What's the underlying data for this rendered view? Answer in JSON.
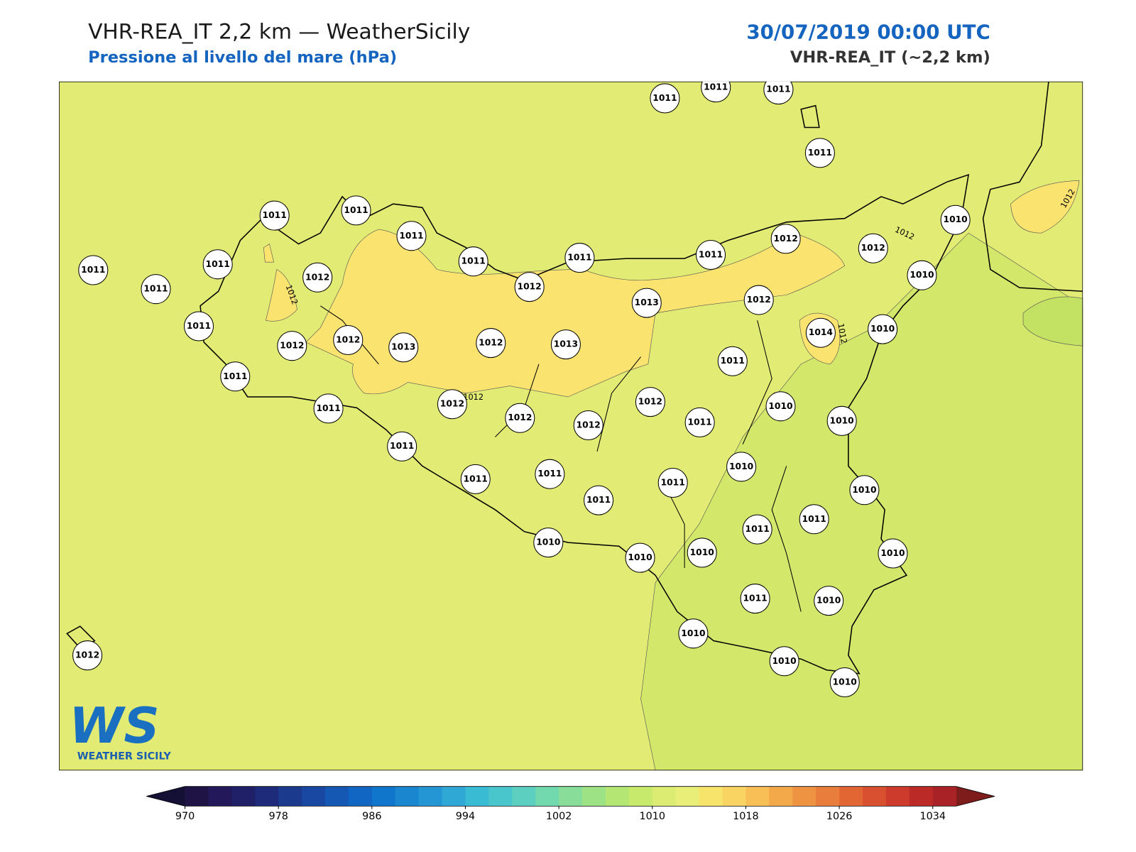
{
  "header": {
    "title": "VHR-REA_IT 2,2 km — WeatherSicily",
    "subtitle": "Pressione al livello del mare (hPa)",
    "date": "30/07/2019 00:00 UTC",
    "model": "VHR-REA_IT (~2,2 km)"
  },
  "stations": {
    "values": [
      1011,
      1011,
      1011,
      1011,
      1011,
      1011,
      1011,
      1011,
      1011,
      1011,
      1012,
      1012,
      1010,
      1010,
      1011,
      1011,
      1011,
      1012,
      1012,
      1013,
      1012,
      1014,
      1010,
      1011,
      1012,
      1012,
      1013,
      1012,
      1013,
      1011,
      1011,
      1011,
      1012,
      1012,
      1012,
      1012,
      1011,
      1010,
      1010,
      1011,
      1011,
      1011,
      1011,
      1011,
      1010,
      1010,
      1011,
      1011,
      1010,
      1010,
      1010,
      1010,
      1011,
      1010,
      1010,
      1010,
      1010,
      1012
    ]
  },
  "contour_labels": [
    "1012",
    "1012",
    "1012",
    "1012",
    "1012"
  ],
  "colorbar": {
    "range": [
      970,
      1036
    ],
    "ticks": [
      970,
      978,
      986,
      994,
      1002,
      1010,
      1018,
      1026,
      1034
    ],
    "colors": [
      "#1f1346",
      "#22185a",
      "#1f2068",
      "#1e2a7a",
      "#1b3a8e",
      "#1848a2",
      "#1458b4",
      "#1066c2",
      "#0f76cc",
      "#1a86d0",
      "#2596d4",
      "#2fa8d6",
      "#3abbd4",
      "#48c6cc",
      "#5ccfc0",
      "#72d8ad",
      "#88de98",
      "#9ee286",
      "#b4e674",
      "#c8ea6c",
      "#dcec72",
      "#e8ee78",
      "#f7e46a",
      "#f9d462",
      "#f7bf55",
      "#f3a94a",
      "#ee9342",
      "#e97d3b",
      "#e26634",
      "#d8502f",
      "#cc3b2b",
      "#bc2a28",
      "#a82226"
    ],
    "under_color": "#140f35",
    "over_color": "#7e1c1c"
  },
  "logo": {
    "mark": "WS",
    "name": "WEATHER SICILY"
  }
}
